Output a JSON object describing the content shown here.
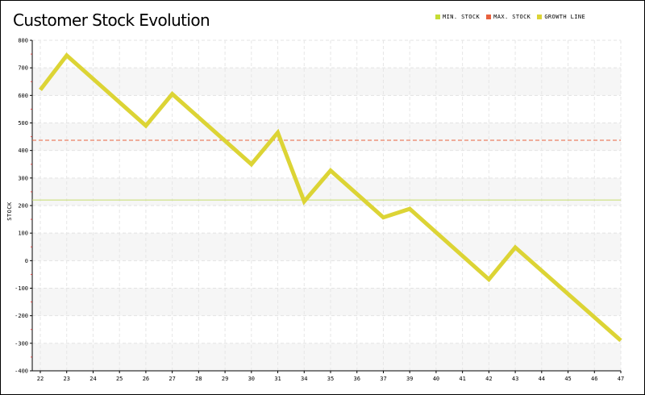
{
  "chart_data": {
    "type": "line",
    "title": "Customer Stock Evolution",
    "xlabel": "",
    "ylabel": "STOCK",
    "categories": [
      "22",
      "23",
      "24",
      "25",
      "26",
      "27",
      "28",
      "29",
      "30",
      "31",
      "34",
      "35",
      "36",
      "37",
      "39",
      "40",
      "41",
      "42",
      "43",
      "44",
      "45",
      "46",
      "47"
    ],
    "series": [
      {
        "name": "GROWTH LINE",
        "values": [
          620,
          745,
          null,
          null,
          490,
          605,
          null,
          null,
          350,
          465,
          215,
          327,
          null,
          157,
          188,
          null,
          null,
          -68,
          48,
          null,
          null,
          null,
          -290
        ],
        "color": "#dcd435"
      }
    ],
    "reference_lines": [
      {
        "name": "MIN. STOCK",
        "y": 220,
        "color": "#c5dd6c",
        "style": "solid"
      },
      {
        "name": "MAX. STOCK",
        "y": 437,
        "color": "#e8613e",
        "style": "dashed"
      }
    ],
    "ylim": [
      -400,
      800
    ],
    "yticks": [
      "800",
      "700",
      "600",
      "500",
      "400",
      "300",
      "200",
      "100",
      "0",
      "-100",
      "-200",
      "-300",
      "-400"
    ],
    "ytick_values": [
      800,
      700,
      600,
      500,
      400,
      300,
      200,
      100,
      0,
      -100,
      -200,
      -300,
      -400
    ],
    "grid": true,
    "legend_position": "top-right"
  },
  "legend": [
    {
      "label": "MIN. STOCK",
      "color": "#c5dd35"
    },
    {
      "label": "MAX. STOCK",
      "color": "#e8613e"
    },
    {
      "label": "GROWTH LINE",
      "color": "#dcd435"
    }
  ]
}
